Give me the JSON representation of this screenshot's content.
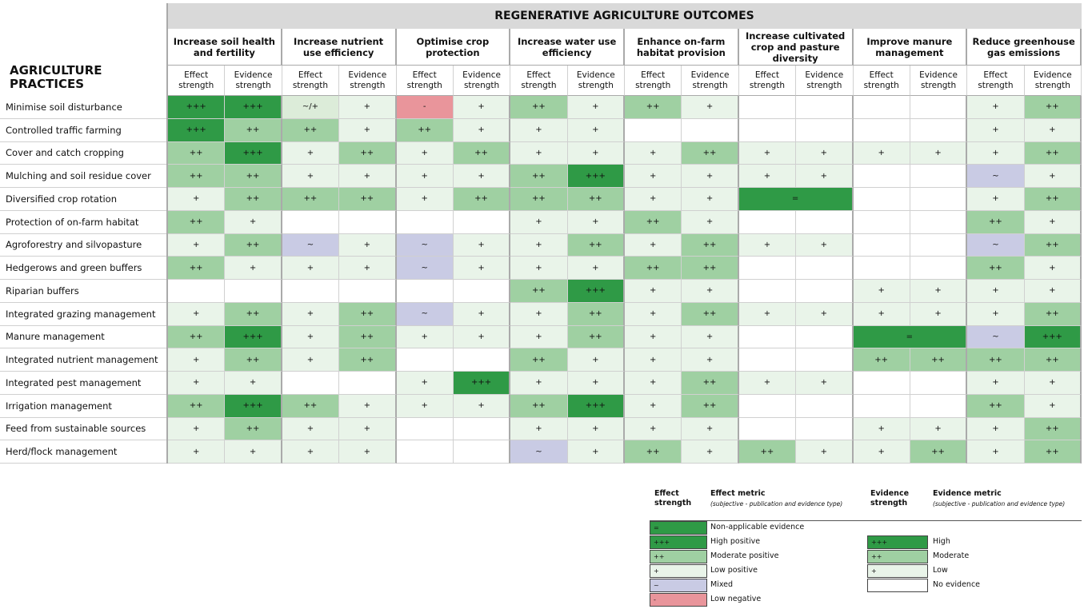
{
  "header": {
    "title": "REGENERATIVE AGRICULTURE OUTCOMES",
    "row_header": "AGRICULTURE PRACTICES"
  },
  "outcomes": [
    "Increase soil health and fertility",
    "Increase nutrient use efficiency",
    "Optimise crop protection",
    "Increase water use efficiency",
    "Enhance on-farm habitat provision",
    "Increase cultivated crop and pasture diversity",
    "Improve manure management",
    "Reduce greenhouse gas emissions"
  ],
  "subheaders": [
    "Effect strength",
    "Evidence strength"
  ],
  "rows": [
    {
      "practice": "Minimise soil disturbance",
      "cells": [
        "+++",
        "+++",
        "~/+",
        "+",
        "-",
        "+",
        "++",
        "+",
        "++",
        "+",
        null,
        null,
        null,
        null,
        "+",
        "++"
      ]
    },
    {
      "practice": "Controlled traffic farming",
      "cells": [
        "+++",
        "++",
        "++",
        "+",
        "++",
        "+",
        "+",
        "+",
        null,
        null,
        null,
        null,
        null,
        null,
        "+",
        "+"
      ]
    },
    {
      "practice": "Cover and catch cropping",
      "cells": [
        "++",
        "+++",
        "+",
        "++",
        "+",
        "++",
        "+",
        "+",
        "+",
        "++",
        "+",
        "+",
        "+",
        "+",
        "+",
        "++"
      ]
    },
    {
      "practice": "Mulching and soil residue cover",
      "cells": [
        "++",
        "++",
        "+",
        "+",
        "+",
        "+",
        "++",
        "+++",
        "+",
        "+",
        "+",
        "+",
        null,
        null,
        "~",
        "+"
      ]
    },
    {
      "practice": "Diversified crop rotation",
      "cells": [
        "+",
        "++",
        "++",
        "++",
        "+",
        "++",
        "++",
        "++",
        "+",
        "+",
        "=",
        null,
        null,
        null,
        "+",
        "++"
      ]
    },
    {
      "practice": "Protection of on-farm habitat",
      "cells": [
        "++",
        "+",
        null,
        null,
        null,
        null,
        "+",
        "+",
        "++",
        "+",
        null,
        null,
        null,
        null,
        "++",
        "+"
      ]
    },
    {
      "practice": "Agroforestry and silvopasture",
      "cells": [
        "+",
        "++",
        "~",
        "+",
        "~",
        "+",
        "+",
        "++",
        "+",
        "++",
        "+",
        "+",
        null,
        null,
        "~",
        "++"
      ]
    },
    {
      "practice": "Hedgerows and green buffers",
      "cells": [
        "++",
        "+",
        "+",
        "+",
        "~",
        "+",
        "+",
        "+",
        "++",
        "++",
        null,
        null,
        null,
        null,
        "++",
        "+"
      ]
    },
    {
      "practice": "Riparian buffers",
      "cells": [
        null,
        null,
        null,
        null,
        null,
        null,
        "++",
        "+++",
        "+",
        "+",
        null,
        null,
        "+",
        "+",
        "+",
        "+"
      ]
    },
    {
      "practice": "Integrated grazing management",
      "cells": [
        "+",
        "++",
        "+",
        "++",
        "~",
        "+",
        "+",
        "++",
        "+",
        "++",
        "+",
        "+",
        "+",
        "+",
        "+",
        "++"
      ]
    },
    {
      "practice": "Manure management",
      "cells": [
        "++",
        "+++",
        "+",
        "++",
        "+",
        "+",
        "+",
        "++",
        "+",
        "+",
        null,
        null,
        "=",
        null,
        "~",
        "+++"
      ]
    },
    {
      "practice": "Integrated nutrient management",
      "cells": [
        "+",
        "++",
        "+",
        "++",
        null,
        null,
        "++",
        "+",
        "+",
        "+",
        null,
        null,
        "++",
        "++",
        "++",
        "++"
      ]
    },
    {
      "practice": "Integrated pest management",
      "cells": [
        "+",
        "+",
        null,
        null,
        "+",
        "+++",
        "+",
        "+",
        "+",
        "++",
        "+",
        "+",
        null,
        null,
        "+",
        "+"
      ]
    },
    {
      "practice": "Irrigation management",
      "cells": [
        "++",
        "+++",
        "++",
        "+",
        "+",
        "+",
        "++",
        "+++",
        "+",
        "++",
        null,
        null,
        null,
        null,
        "++",
        "+"
      ]
    },
    {
      "practice": "Feed from sustainable sources",
      "cells": [
        "+",
        "++",
        "+",
        "+",
        null,
        null,
        "+",
        "+",
        "+",
        "+",
        null,
        null,
        "+",
        "+",
        "+",
        "++"
      ]
    },
    {
      "practice": "Herd/flock management",
      "cells": [
        "+",
        "+",
        "+",
        "+",
        null,
        null,
        "~",
        "+",
        "++",
        "+",
        "++",
        "+",
        "+",
        "++",
        "+",
        "++"
      ]
    }
  ],
  "legend": {
    "effect_heading": "Effect strength",
    "effect_metric": "Effect metric",
    "effect_note": "(subjective - publication and evidence type)",
    "evidence_heading": "Evidence strength",
    "evidence_metric": "Evidence metric",
    "evidence_note": "(subjective - publication and evidence type)",
    "effect": [
      {
        "symbol": "=",
        "label": "Non-applicable evidence",
        "color": "#2f9a46"
      },
      {
        "symbol": "+++",
        "label": "High positive",
        "color": "#2f9a46"
      },
      {
        "symbol": "++",
        "label": "Moderate positive",
        "color": "#9fd0a2"
      },
      {
        "symbol": "+",
        "label": "Low positive",
        "color": "#e9f4e9"
      },
      {
        "symbol": "~",
        "label": "Mixed",
        "color": "#c9cbe4"
      },
      {
        "symbol": "-",
        "label": "Low negative",
        "color": "#e9959b"
      }
    ],
    "evidence": [
      {
        "symbol": "+++",
        "label": "High",
        "color": "#2f9a46"
      },
      {
        "symbol": "++",
        "label": "Moderate",
        "color": "#9fd0a2"
      },
      {
        "symbol": "+",
        "label": "Low",
        "color": "#e9f4e9"
      },
      {
        "symbol": null,
        "label": "No evidence",
        "color": "#ffffff"
      }
    ]
  }
}
